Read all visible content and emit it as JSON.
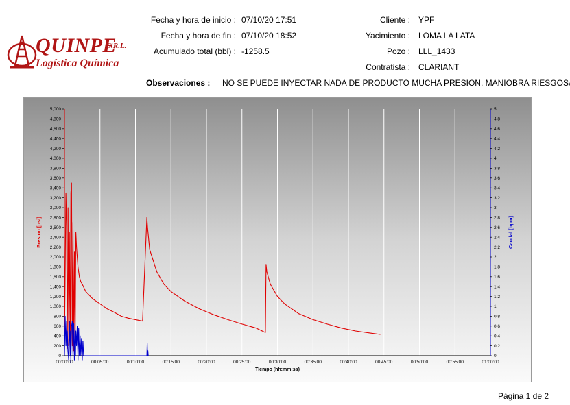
{
  "header": {
    "logo_brand": "QUINPE",
    "logo_srl": "S.R.L.",
    "logo_sub": "Logística Química",
    "fields": [
      {
        "label": "Fecha y hora de inicio :",
        "value": "07/10/20  17:51"
      },
      {
        "label": "Fecha y hora de fin :",
        "value": "07/10/20  18:52"
      },
      {
        "label": "Acumulado total (bbl) :",
        "value": "-1258.5"
      }
    ],
    "right_fields": [
      {
        "label": "Cliente :",
        "value": "YPF"
      },
      {
        "label": "Yacimiento :",
        "value": "LOMA LA LATA"
      },
      {
        "label": "Pozo :",
        "value": "LLL_1433"
      },
      {
        "label": "Contratista :",
        "value": "CLARIANT"
      }
    ],
    "observaciones_label": "Observaciones :",
    "observaciones_value": "NO SE PUEDE INYECTAR NADA DE PRODUCTO MUCHA PRESION, MANIOBRA RIESGOSA"
  },
  "footer": {
    "page": "Página 1 de 2"
  },
  "colors": {
    "pressure": "#e00000",
    "flow": "#0000cc",
    "grid": "#ffffff"
  },
  "chart_data": {
    "type": "line",
    "xlabel": "Tiempo (hh:mm:ss)",
    "ylabel": "Presion [psi]",
    "y2label": "Caudal [bpm]",
    "x_unit": "minutes",
    "xlim": [
      0,
      60
    ],
    "ylim": [
      0,
      5000
    ],
    "y2lim": [
      0,
      5
    ],
    "x_ticks": [
      "00:00:00",
      "00:05:00",
      "00:10:00",
      "00:15:00",
      "00:20:00",
      "00:25:00",
      "00:30:00",
      "00:35:00",
      "00:40:00",
      "00:45:00",
      "00:50:00",
      "00:55:00",
      "01:00:00"
    ],
    "y_ticks": [
      "0",
      "200",
      "400",
      "600",
      "800",
      "1,000",
      "1,200",
      "1,400",
      "1,600",
      "1,800",
      "2,000",
      "2,200",
      "2,400",
      "2,600",
      "2,800",
      "3,000",
      "3,200",
      "3,400",
      "3,600",
      "3,800",
      "4,000",
      "4,200",
      "4,400",
      "4,600",
      "4,800",
      "5,000"
    ],
    "y2_ticks": [
      "0",
      "0.2",
      "0.4",
      "0.6",
      "0.8",
      "1",
      "1.2",
      "1.4",
      "1.6",
      "1.8",
      "2",
      "2.2",
      "2.4",
      "2.6",
      "2.8",
      "3",
      "3.2",
      "3.4",
      "3.6",
      "3.8",
      "4",
      "4.2",
      "4.4",
      "4.6",
      "4.8",
      "5"
    ],
    "grid": true,
    "series": [
      {
        "name": "Presion [psi]",
        "axis": "left",
        "x": [
          0.0,
          0.2,
          0.3,
          0.4,
          0.5,
          0.6,
          0.7,
          0.8,
          0.9,
          1.0,
          1.1,
          1.2,
          1.3,
          1.4,
          1.5,
          1.6,
          1.7,
          1.8,
          1.9,
          2.0,
          2.1,
          2.3,
          2.5,
          3.0,
          4.0,
          5.0,
          6.0,
          7.0,
          8.0,
          9.0,
          10.0,
          11.0,
          11.6,
          11.7,
          12.0,
          13.0,
          14.0,
          15.0,
          17.0,
          19.0,
          21.0,
          23.0,
          25.0,
          27.0,
          28.3,
          28.4,
          28.5,
          29.0,
          30.0,
          31.0,
          33.0,
          35.0,
          37.0,
          39.0,
          41.0,
          43.0,
          44.5
        ],
        "y": [
          200,
          3300,
          2600,
          150,
          3000,
          200,
          2500,
          100,
          3300,
          3500,
          200,
          2700,
          100,
          2100,
          150,
          2500,
          2200,
          2000,
          1800,
          1700,
          1600,
          1500,
          1450,
          1300,
          1150,
          1050,
          950,
          880,
          800,
          760,
          730,
          700,
          2800,
          2600,
          2150,
          1700,
          1450,
          1300,
          1100,
          950,
          830,
          730,
          640,
          560,
          470,
          1850,
          1700,
          1450,
          1200,
          1050,
          850,
          730,
          640,
          560,
          500,
          460,
          430
        ]
      },
      {
        "name": "Caudal [bpm]",
        "axis": "right",
        "x": [
          0.0,
          0.1,
          0.2,
          0.3,
          0.35,
          0.4,
          0.5,
          0.6,
          0.7,
          0.8,
          0.85,
          0.9,
          1.0,
          1.1,
          1.2,
          1.3,
          1.4,
          1.5,
          1.55,
          1.6,
          1.7,
          1.8,
          1.9,
          2.0,
          2.1,
          2.2,
          2.3,
          2.4,
          2.5,
          2.6,
          2.7,
          11.6,
          11.65,
          11.7,
          11.75,
          11.8
        ],
        "y": [
          0.0,
          0.8,
          0.2,
          0.7,
          0.0,
          0.5,
          0.1,
          -0.1,
          0.7,
          0.0,
          0.5,
          -0.15,
          0.6,
          0.7,
          0.0,
          0.65,
          -0.1,
          0.55,
          0.0,
          0.5,
          0.2,
          0.6,
          -0.1,
          0.55,
          0.0,
          0.4,
          0.0,
          0.35,
          -0.1,
          0.3,
          0.0,
          0.0,
          0.25,
          0.0,
          0.1,
          0.0
        ]
      }
    ]
  }
}
